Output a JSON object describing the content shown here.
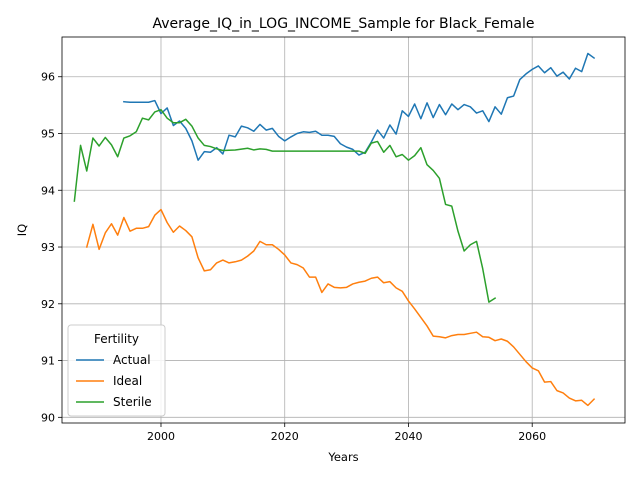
{
  "chart_data": {
    "type": "line",
    "title": "Average_IQ_in_LOG_INCOME_Sample for Black_Female",
    "xlabel": "Years",
    "ylabel": "IQ",
    "xlim": [
      1984,
      2075
    ],
    "ylim": [
      89.9,
      96.7
    ],
    "xticks": [
      2000,
      2020,
      2040,
      2060
    ],
    "yticks": [
      90,
      91,
      92,
      93,
      94,
      95,
      96
    ],
    "grid": true,
    "legend": {
      "title": "Fertility",
      "position": "lower-left"
    },
    "series": [
      {
        "name": "Actual",
        "color": "#1f77b4",
        "x": [
          1994,
          1995,
          1996,
          1997,
          1998,
          1999,
          2000,
          2001,
          2002,
          2003,
          2004,
          2005,
          2006,
          2007,
          2008,
          2009,
          2010,
          2011,
          2012,
          2013,
          2014,
          2015,
          2016,
          2017,
          2018,
          2019,
          2020,
          2021,
          2022,
          2023,
          2024,
          2025,
          2026,
          2027,
          2028,
          2029,
          2030,
          2031,
          2032,
          2033,
          2034,
          2035,
          2036,
          2037,
          2038,
          2039,
          2040,
          2041,
          2042,
          2043,
          2044,
          2045,
          2046,
          2047,
          2048,
          2049,
          2050,
          2051,
          2052,
          2053,
          2054,
          2055,
          2056,
          2057,
          2058,
          2059,
          2060,
          2061,
          2062,
          2063,
          2064,
          2065,
          2066,
          2067,
          2068,
          2069,
          2070
        ],
        "y": [
          95.56,
          95.55,
          95.55,
          95.55,
          95.55,
          95.58,
          95.35,
          95.45,
          95.14,
          95.22,
          95.09,
          94.87,
          94.53,
          94.68,
          94.67,
          94.75,
          94.64,
          94.97,
          94.94,
          95.13,
          95.1,
          95.04,
          95.16,
          95.06,
          95.09,
          94.95,
          94.87,
          94.94,
          95.0,
          95.03,
          95.02,
          95.04,
          94.97,
          94.97,
          94.95,
          94.82,
          94.76,
          94.72,
          94.62,
          94.67,
          94.85,
          95.06,
          94.92,
          95.15,
          94.99,
          95.4,
          95.3,
          95.52,
          95.26,
          95.54,
          95.28,
          95.51,
          95.33,
          95.52,
          95.42,
          95.51,
          95.47,
          95.36,
          95.4,
          95.21,
          95.47,
          95.34,
          95.63,
          95.66,
          95.95,
          96.05,
          96.13,
          96.19,
          96.07,
          96.16,
          96.01,
          96.08,
          95.96,
          96.15,
          96.09,
          96.41,
          96.33
        ]
      },
      {
        "name": "Ideal",
        "color": "#ff7f0e",
        "x": [
          1988,
          1989,
          1990,
          1991,
          1992,
          1993,
          1994,
          1995,
          1996,
          1997,
          1998,
          1999,
          2000,
          2001,
          2002,
          2003,
          2004,
          2005,
          2006,
          2007,
          2008,
          2009,
          2010,
          2011,
          2012,
          2013,
          2014,
          2015,
          2016,
          2017,
          2018,
          2019,
          2020,
          2021,
          2022,
          2023,
          2024,
          2025,
          2026,
          2027,
          2028,
          2029,
          2030,
          2031,
          2032,
          2033,
          2034,
          2035,
          2036,
          2037,
          2038,
          2039,
          2040,
          2041,
          2042,
          2043,
          2044,
          2045,
          2046,
          2047,
          2048,
          2049,
          2050,
          2051,
          2052,
          2053,
          2054,
          2055,
          2056,
          2057,
          2058,
          2059,
          2060,
          2061,
          2062,
          2063,
          2064,
          2065,
          2066,
          2067,
          2068,
          2069,
          2070
        ],
        "y": [
          93.0,
          93.4,
          92.96,
          93.25,
          93.41,
          93.21,
          93.52,
          93.28,
          93.33,
          93.33,
          93.36,
          93.56,
          93.66,
          93.43,
          93.26,
          93.37,
          93.29,
          93.18,
          92.81,
          92.58,
          92.6,
          92.72,
          92.77,
          92.72,
          92.74,
          92.77,
          92.84,
          92.93,
          93.1,
          93.04,
          93.04,
          92.96,
          92.86,
          92.72,
          92.69,
          92.63,
          92.47,
          92.47,
          92.2,
          92.35,
          92.29,
          92.28,
          92.29,
          92.35,
          92.38,
          92.4,
          92.45,
          92.47,
          92.37,
          92.39,
          92.28,
          92.22,
          92.05,
          91.91,
          91.76,
          91.61,
          91.43,
          91.42,
          91.4,
          91.44,
          91.46,
          91.46,
          91.48,
          91.5,
          91.42,
          91.41,
          91.35,
          91.38,
          91.34,
          91.24,
          91.11,
          90.98,
          90.87,
          90.82,
          90.62,
          90.63,
          90.47,
          90.43,
          90.34,
          90.29,
          90.3,
          90.21,
          90.32
        ]
      },
      {
        "name": "Sterile",
        "color": "#2ca02c",
        "x": [
          1986,
          1987,
          1988,
          1989,
          1990,
          1991,
          1992,
          1993,
          1994,
          1995,
          1996,
          1997,
          1998,
          1999,
          2000,
          2001,
          2002,
          2003,
          2004,
          2005,
          2006,
          2007,
          2008,
          2009,
          2010,
          2012,
          2014,
          2015,
          2016,
          2017,
          2018,
          2020,
          2025,
          2030,
          2032,
          2033,
          2034,
          2035,
          2036,
          2037,
          2038,
          2039,
          2040,
          2041,
          2042,
          2043,
          2044,
          2045,
          2046,
          2047,
          2048,
          2049,
          2050,
          2051,
          2052,
          2053,
          2054
        ],
        "y": [
          93.81,
          94.79,
          94.34,
          94.92,
          94.78,
          94.93,
          94.8,
          94.59,
          94.92,
          94.96,
          95.03,
          95.27,
          95.24,
          95.38,
          95.42,
          95.27,
          95.19,
          95.19,
          95.25,
          95.13,
          94.92,
          94.79,
          94.77,
          94.73,
          94.7,
          94.71,
          94.74,
          94.71,
          94.73,
          94.72,
          94.69,
          94.69,
          94.69,
          94.69,
          94.69,
          94.65,
          94.83,
          94.86,
          94.67,
          94.79,
          94.59,
          94.63,
          94.53,
          94.61,
          94.75,
          94.45,
          94.35,
          94.21,
          93.75,
          93.72,
          93.28,
          92.93,
          93.04,
          93.1,
          92.62,
          92.03,
          92.1
        ]
      }
    ]
  }
}
